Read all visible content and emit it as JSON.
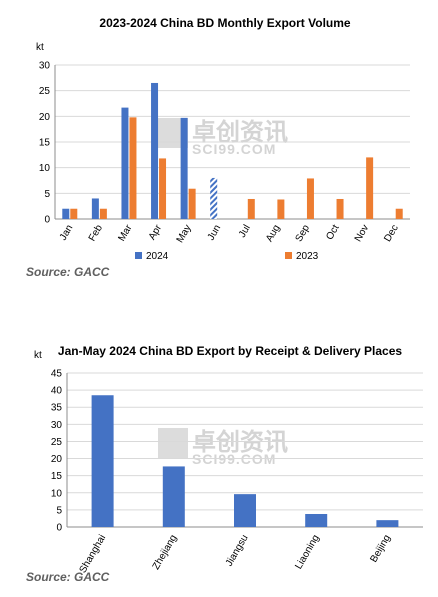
{
  "chart_data": [
    {
      "type": "bar",
      "title": "2023-2024  China BD Monthly Export Volume",
      "unit_label": "kt",
      "categories": [
        "Jan",
        "Feb",
        "Mar",
        "Apr",
        "May",
        "Jun",
        "Jul",
        "Aug",
        "Sep",
        "Oct",
        "Nov",
        "Dec"
      ],
      "series": [
        {
          "name": "2024",
          "color": "#4472C4",
          "values": [
            2,
            4,
            21.7,
            26.5,
            19.7,
            8,
            null,
            null,
            null,
            null,
            null,
            null
          ],
          "estimated_index": 5
        },
        {
          "name": "2023",
          "color": "#ED7D31",
          "values": [
            2,
            2,
            19.8,
            11.8,
            5.9,
            null,
            3.9,
            3.8,
            7.9,
            3.9,
            12,
            2
          ]
        }
      ],
      "ylim": [
        0,
        30
      ],
      "yticks": [
        0,
        5,
        10,
        15,
        20,
        25,
        30
      ],
      "grid": true,
      "legend": "bottom",
      "source": "Source: GACC"
    },
    {
      "type": "bar",
      "title": "Jan-May 2024  China BD  Export by Receipt & Delivery Places",
      "unit_label": "kt",
      "categories": [
        "Shanghai",
        "Zhejiang",
        "Jiangsu",
        "Liaoning",
        "Beijing"
      ],
      "series": [
        {
          "color": "#4472C4",
          "values": [
            38.5,
            17.7,
            9.6,
            3.8,
            2
          ]
        }
      ],
      "ylim": [
        0,
        45
      ],
      "yticks": [
        0,
        5,
        10,
        15,
        20,
        25,
        30,
        35,
        40,
        45
      ],
      "grid": true,
      "source": "Source: GACC"
    }
  ],
  "watermark": {
    "cn": "卓创资讯",
    "en": "SCI99.COM"
  }
}
